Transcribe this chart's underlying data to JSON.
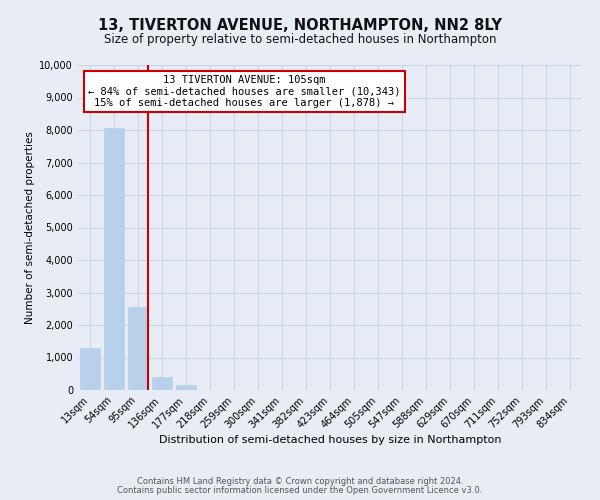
{
  "title": "13, TIVERTON AVENUE, NORTHAMPTON, NN2 8LY",
  "subtitle": "Size of property relative to semi-detached houses in Northampton",
  "xlabel": "Distribution of semi-detached houses by size in Northampton",
  "ylabel": "Number of semi-detached properties",
  "bar_labels": [
    "13sqm",
    "54sqm",
    "95sqm",
    "136sqm",
    "177sqm",
    "218sqm",
    "259sqm",
    "300sqm",
    "341sqm",
    "382sqm",
    "423sqm",
    "464sqm",
    "505sqm",
    "547sqm",
    "588sqm",
    "629sqm",
    "670sqm",
    "711sqm",
    "752sqm",
    "793sqm",
    "834sqm"
  ],
  "bar_values": [
    1300,
    8050,
    2550,
    390,
    155,
    0,
    0,
    0,
    0,
    0,
    0,
    0,
    0,
    0,
    0,
    0,
    0,
    0,
    0,
    0,
    0
  ],
  "bar_color": "#b8d0ea",
  "bar_edge_color": "#b8d0ea",
  "grid_color": "#c8d4e8",
  "background_color": "#e8edf5",
  "vline_x": 2.42,
  "vline_color": "#cc0000",
  "ylim": [
    0,
    10000
  ],
  "yticks": [
    0,
    1000,
    2000,
    3000,
    4000,
    5000,
    6000,
    7000,
    8000,
    9000,
    10000
  ],
  "annotation_title": "13 TIVERTON AVENUE: 105sqm",
  "annotation_line1": "← 84% of semi-detached houses are smaller (10,343)",
  "annotation_line2": "15% of semi-detached houses are larger (1,878) →",
  "annotation_box_color": "#ffffff",
  "annotation_box_edge": "#cc0000",
  "footer1": "Contains HM Land Registry data © Crown copyright and database right 2024.",
  "footer2": "Contains public sector information licensed under the Open Government Licence v3.0.",
  "title_fontsize": 10.5,
  "subtitle_fontsize": 8.5,
  "tick_fontsize": 7,
  "ylabel_fontsize": 7.5,
  "xlabel_fontsize": 8,
  "annotation_fontsize": 7.5,
  "footer_fontsize": 6
}
